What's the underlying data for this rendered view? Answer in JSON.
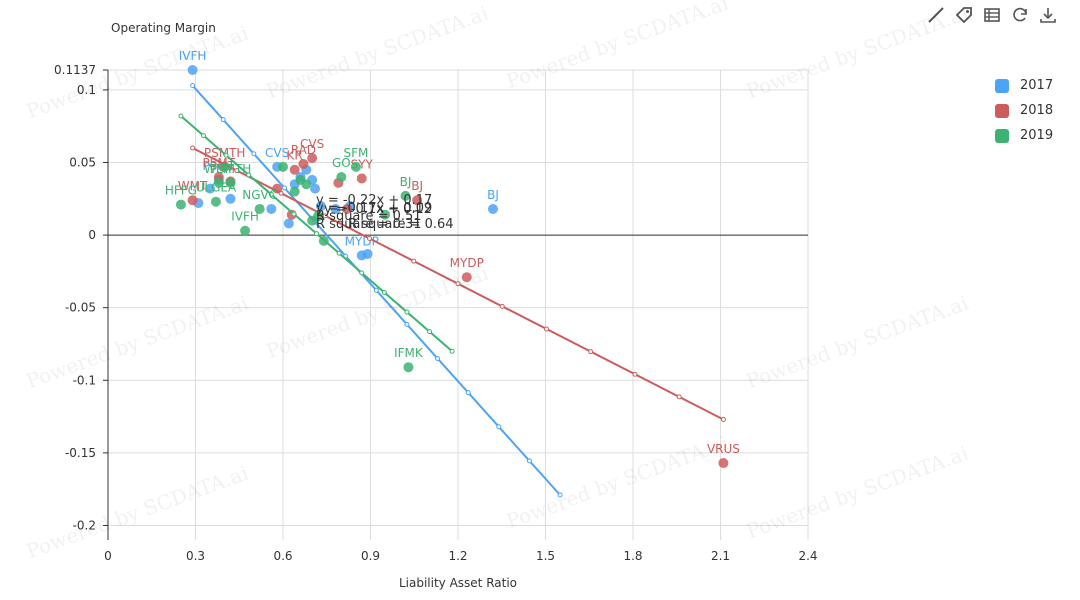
{
  "watermark": "Powered by SCDATA.ai",
  "toolbar": {
    "icons": [
      "line-tool-icon",
      "tag-icon",
      "table-icon",
      "refresh-icon",
      "download-icon"
    ]
  },
  "legend": [
    {
      "label": "2017",
      "color": "#4da3f5"
    },
    {
      "label": "2018",
      "color": "#cd5c5c"
    },
    {
      "label": "2019",
      "color": "#3cb371"
    }
  ],
  "chart_data": {
    "type": "scatter",
    "title": "",
    "xlabel": "Liability Asset Ratio",
    "ylabel": "Operating Margin",
    "xlim": [
      0,
      2.4
    ],
    "ylim": [
      -0.21,
      0.1137
    ],
    "x_ticks": [
      "0",
      "0.3",
      "0.6",
      "0.9",
      "1.2",
      "1.5",
      "1.8",
      "2.1",
      "2.4"
    ],
    "y_ticks": [
      "0.1137",
      "0.1",
      "0.05",
      "0",
      "-0.05",
      "-0.1",
      "-0.15",
      "-0.2"
    ],
    "grid": true,
    "legend_position": "right",
    "series": [
      {
        "name": "2017",
        "color": "#4da3f5",
        "points": [
          {
            "x": 0.29,
            "y": 0.1137,
            "label": "IVFH"
          },
          {
            "x": 0.31,
            "y": 0.022
          },
          {
            "x": 0.35,
            "y": 0.032
          },
          {
            "x": 0.38,
            "y": 0.038,
            "label": "PSMT"
          },
          {
            "x": 0.42,
            "y": 0.025
          },
          {
            "x": 0.56,
            "y": 0.018
          },
          {
            "x": 0.58,
            "y": 0.047,
            "label": "CVS"
          },
          {
            "x": 0.62,
            "y": 0.008
          },
          {
            "x": 0.64,
            "y": 0.035
          },
          {
            "x": 0.66,
            "y": 0.04
          },
          {
            "x": 0.68,
            "y": 0.045
          },
          {
            "x": 0.7,
            "y": 0.038
          },
          {
            "x": 0.71,
            "y": 0.032
          },
          {
            "x": 0.73,
            "y": 0.02
          },
          {
            "x": 0.78,
            "y": 0.018
          },
          {
            "x": 0.83,
            "y": 0.02
          },
          {
            "x": 0.87,
            "y": -0.014,
            "label": "MYDP"
          },
          {
            "x": 0.89,
            "y": -0.013
          },
          {
            "x": 1.32,
            "y": 0.018,
            "label": "BJ"
          }
        ],
        "trendline": {
          "x": [
            0.29,
            1.55
          ],
          "y": [
            0.103,
            -0.179
          ]
        }
      },
      {
        "name": "2018",
        "color": "#cd5c5c",
        "points": [
          {
            "x": 0.29,
            "y": 0.024,
            "label": "WMT"
          },
          {
            "x": 0.38,
            "y": 0.04,
            "label": "PSMT"
          },
          {
            "x": 0.4,
            "y": 0.047,
            "label": "PSMTH"
          },
          {
            "x": 0.42,
            "y": 0.037
          },
          {
            "x": 0.58,
            "y": 0.032
          },
          {
            "x": 0.63,
            "y": 0.014
          },
          {
            "x": 0.64,
            "y": 0.045,
            "label": "KR"
          },
          {
            "x": 0.67,
            "y": 0.049,
            "label": "RAD"
          },
          {
            "x": 0.7,
            "y": 0.053,
            "label": "CVS"
          },
          {
            "x": 0.79,
            "y": 0.036
          },
          {
            "x": 0.82,
            "y": 0.018
          },
          {
            "x": 0.87,
            "y": 0.039,
            "label": "SYY"
          },
          {
            "x": 1.06,
            "y": 0.024,
            "label": "BJ"
          },
          {
            "x": 1.23,
            "y": -0.029,
            "label": "MYDP"
          },
          {
            "x": 2.11,
            "y": -0.157,
            "label": "VRUS"
          }
        ],
        "trendline": {
          "x": [
            0.29,
            2.11
          ],
          "y": [
            0.06,
            -0.127
          ]
        }
      },
      {
        "name": "2019",
        "color": "#3cb371",
        "points": [
          {
            "x": 0.25,
            "y": 0.021,
            "label": "HFFG"
          },
          {
            "x": 0.37,
            "y": 0.023,
            "label": "ULGEA"
          },
          {
            "x": 0.38,
            "y": 0.036,
            "label": "WMT"
          },
          {
            "x": 0.42,
            "y": 0.036,
            "label": "PSMTH"
          },
          {
            "x": 0.47,
            "y": 0.003,
            "label": "IVFH"
          },
          {
            "x": 0.52,
            "y": 0.018,
            "label": "NGVC"
          },
          {
            "x": 0.6,
            "y": 0.047
          },
          {
            "x": 0.64,
            "y": 0.03
          },
          {
            "x": 0.66,
            "y": 0.038
          },
          {
            "x": 0.68,
            "y": 0.035
          },
          {
            "x": 0.7,
            "y": 0.01
          },
          {
            "x": 0.72,
            "y": 0.013
          },
          {
            "x": 0.74,
            "y": -0.004
          },
          {
            "x": 0.8,
            "y": 0.04,
            "label": "GO"
          },
          {
            "x": 0.85,
            "y": 0.047,
            "label": "SFM"
          },
          {
            "x": 0.95,
            "y": 0.014
          },
          {
            "x": 1.02,
            "y": 0.027,
            "label": "BJ"
          },
          {
            "x": 1.03,
            "y": -0.091,
            "label": "IFMK"
          }
        ],
        "trendline": {
          "x": [
            0.25,
            1.18
          ],
          "y": [
            0.082,
            -0.08
          ]
        }
      }
    ],
    "annotations": [
      "y = -0.22x + 0.17",
      "y = -0.17x + 0.09",
      "y = -0.1x + 0.12",
      "R square = 0.51",
      "R square = 0.31",
      "R square = 0.64"
    ]
  }
}
